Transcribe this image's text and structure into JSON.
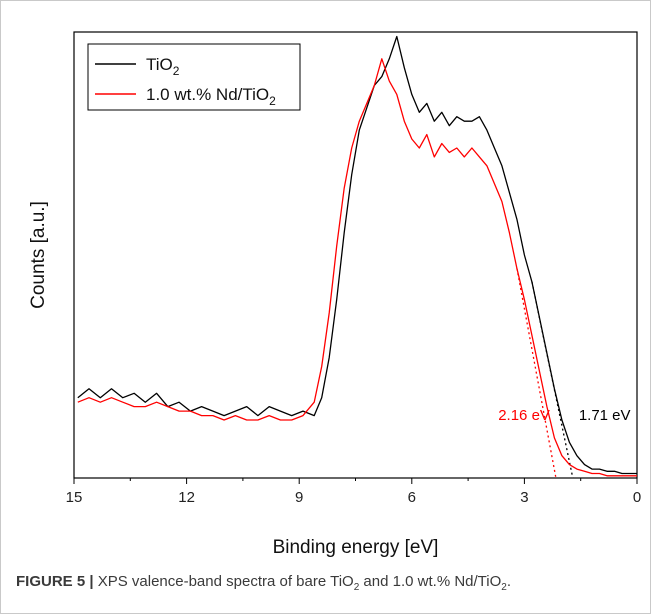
{
  "chart_data": {
    "type": "line",
    "xlabel": "Binding energy [eV]",
    "ylabel": "Counts [a.u.]",
    "x_reversed": true,
    "xlim": [
      15,
      0
    ],
    "ylim": [
      0,
      100
    ],
    "xticks": [
      15,
      12,
      9,
      6,
      3,
      0
    ],
    "yticks_visible": false,
    "grid": false,
    "legend_position": "top-left",
    "legend": [
      {
        "series": "TiO2",
        "label_main": "TiO",
        "label_sub": "2",
        "color": "#000000"
      },
      {
        "series": "1.0 wt.% Nd/TiO2",
        "label_main": "1.0 wt.% Nd/TiO",
        "label_sub": "2",
        "color": "#ff0000"
      }
    ],
    "series": [
      {
        "name": "TiO2",
        "color": "#000000",
        "x": [
          14.9,
          14.6,
          14.3,
          14.0,
          13.7,
          13.4,
          13.1,
          12.8,
          12.5,
          12.2,
          11.9,
          11.6,
          11.3,
          11.0,
          10.7,
          10.4,
          10.1,
          9.8,
          9.5,
          9.2,
          8.9,
          8.6,
          8.4,
          8.2,
          8.0,
          7.8,
          7.6,
          7.4,
          7.2,
          7.0,
          6.8,
          6.6,
          6.4,
          6.2,
          6.0,
          5.8,
          5.6,
          5.4,
          5.2,
          5.0,
          4.8,
          4.6,
          4.4,
          4.2,
          4.0,
          3.8,
          3.6,
          3.4,
          3.2,
          3.0,
          2.8,
          2.6,
          2.4,
          2.2,
          2.0,
          1.8,
          1.6,
          1.4,
          1.2,
          1.0,
          0.8,
          0.6,
          0.4,
          0.2,
          0.0
        ],
        "y": [
          18,
          20,
          18,
          20,
          18,
          19,
          17,
          19,
          16,
          17,
          15,
          16,
          15,
          14,
          15,
          16,
          14,
          16,
          15,
          14,
          15,
          14,
          18,
          27,
          40,
          55,
          68,
          78,
          83,
          88,
          90,
          94,
          99,
          92,
          86,
          82,
          84,
          80,
          82,
          79,
          81,
          80,
          80,
          81,
          78,
          74,
          70,
          64,
          58,
          50,
          44,
          36,
          28,
          20,
          13,
          8,
          5,
          3,
          2,
          2,
          1.5,
          1.5,
          1,
          1,
          1
        ]
      },
      {
        "name": "1.0 wt.% Nd/TiO2",
        "color": "#ff0000",
        "x": [
          14.9,
          14.6,
          14.3,
          14.0,
          13.7,
          13.4,
          13.1,
          12.8,
          12.5,
          12.2,
          11.9,
          11.6,
          11.3,
          11.0,
          10.7,
          10.4,
          10.1,
          9.8,
          9.5,
          9.2,
          8.9,
          8.6,
          8.4,
          8.2,
          8.0,
          7.8,
          7.6,
          7.4,
          7.2,
          7.0,
          6.8,
          6.6,
          6.4,
          6.2,
          6.0,
          5.8,
          5.6,
          5.4,
          5.2,
          5.0,
          4.8,
          4.6,
          4.4,
          4.2,
          4.0,
          3.8,
          3.6,
          3.4,
          3.2,
          3.0,
          2.8,
          2.6,
          2.4,
          2.2,
          2.0,
          1.8,
          1.6,
          1.4,
          1.2,
          1.0,
          0.8,
          0.6,
          0.4,
          0.2,
          0.0
        ],
        "y": [
          17,
          18,
          17,
          18,
          17,
          16,
          16,
          17,
          16,
          15,
          15,
          14,
          14,
          13,
          14,
          13,
          13,
          14,
          13,
          13,
          14,
          17,
          25,
          37,
          52,
          65,
          74,
          80,
          84,
          88,
          94,
          89,
          86,
          80,
          76,
          74,
          77,
          72,
          75,
          73,
          74,
          72,
          74,
          72,
          70,
          66,
          62,
          55,
          47,
          40,
          32,
          24,
          16,
          9,
          5,
          3,
          2,
          1.5,
          1,
          1,
          0.5,
          0.5,
          0.5,
          0.5,
          0.5
        ]
      }
    ],
    "extrapolation_lines": [
      {
        "series": "1.0 wt.% Nd/TiO2",
        "color": "#ff0000",
        "x": [
          3.2,
          2.16
        ],
        "y": [
          47,
          0
        ]
      },
      {
        "series": "TiO2",
        "color": "#000000",
        "x": [
          2.8,
          1.71
        ],
        "y": [
          44,
          0
        ]
      }
    ],
    "annotations": [
      {
        "text": "2.16 eV",
        "color": "#ff0000",
        "x": 2.16,
        "y": 13
      },
      {
        "text": "1.71 eV",
        "color": "#000000",
        "x": 1.71,
        "y": 13
      }
    ]
  },
  "caption": {
    "label": "FIGURE 5 |",
    "part1": " XPS valence-band spectra of bare TiO",
    "sub1": "2",
    "part2": " and 1.0 wt.% Nd/TiO",
    "sub2": "2",
    "part3": "."
  }
}
